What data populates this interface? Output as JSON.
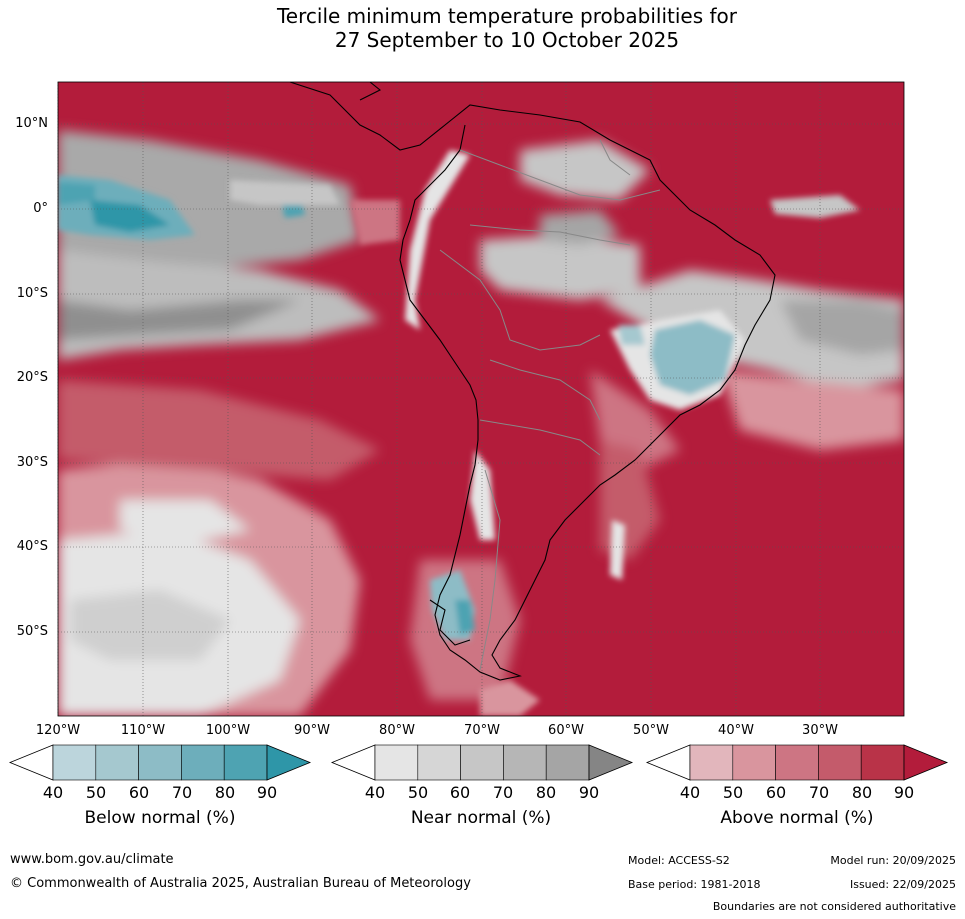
{
  "title": {
    "line1": "Tercile minimum temperature probabilities for",
    "line2": "27 September to 10 October 2025"
  },
  "map": {
    "lat_labels": [
      "10°N",
      "0°",
      "10°S",
      "20°S",
      "30°S",
      "40°S",
      "50°S"
    ],
    "lon_labels": [
      "120°W",
      "110°W",
      "100°W",
      "90°W",
      "80°W",
      "70°W",
      "60°W",
      "50°W",
      "40°W",
      "30°W"
    ]
  },
  "legend": {
    "below": {
      "label": "Below normal (%)",
      "ticks": [
        "40",
        "50",
        "60",
        "70",
        "80",
        "90"
      ],
      "colors": [
        "#bcd5dc",
        "#a5c8cf",
        "#8dbcc6",
        "#6daebb",
        "#4ea3b2",
        "#2e96a8"
      ]
    },
    "near": {
      "label": "Near normal (%)",
      "ticks": [
        "40",
        "50",
        "60",
        "70",
        "80",
        "90"
      ],
      "colors": [
        "#e5e5e5",
        "#d6d6d6",
        "#c6c6c6",
        "#b6b6b6",
        "#a5a5a5",
        "#858585"
      ]
    },
    "above": {
      "label": "Above normal (%)",
      "ticks": [
        "40",
        "50",
        "60",
        "70",
        "80",
        "90"
      ],
      "colors": [
        "#e2b6bc",
        "#d9959e",
        "#cd7583",
        "#c45b6b",
        "#b93348",
        "#b31c3b"
      ]
    }
  },
  "footer": {
    "website": "www.bom.gov.au/climate",
    "copyright": "© Commonwealth of Australia 2025, Australian Bureau of Meteorology",
    "model": "Model: ACCESS-S2",
    "model_run": "Model run: 20/09/2025",
    "base_period": "Base period: 1981-2018",
    "issued": "Issued: 22/09/2025",
    "disclaimer": "Boundaries are not considered authoritative"
  }
}
